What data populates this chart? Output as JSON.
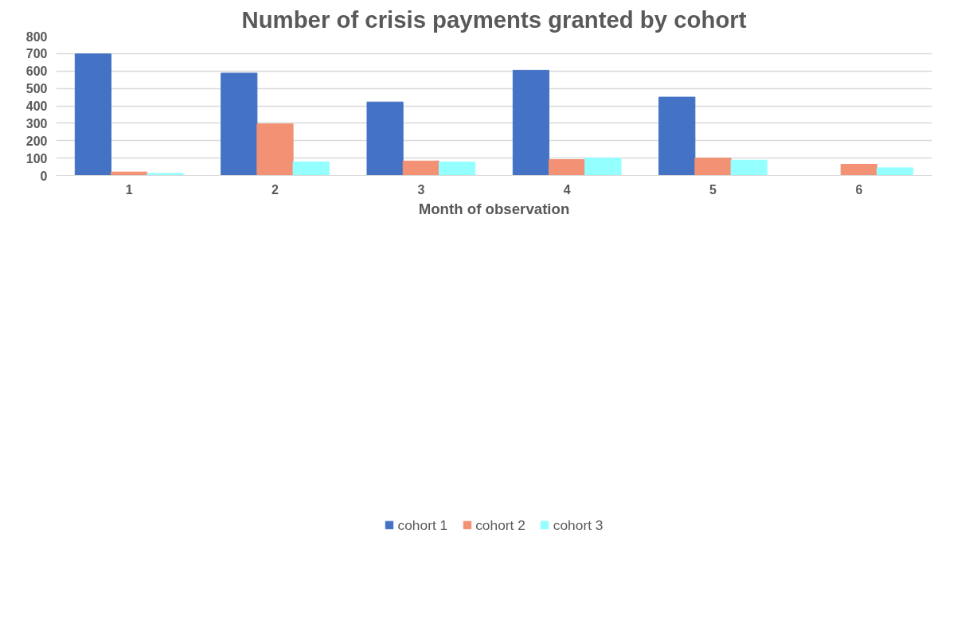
{
  "chart_data": {
    "type": "bar",
    "title": "Number of crisis payments granted by cohort",
    "xlabel": "Month of observation",
    "categories": [
      "1",
      "2",
      "3",
      "4",
      "5",
      "6"
    ],
    "series": [
      {
        "name": "cohort 1",
        "color": "#4472c4",
        "values": [
          698,
          588,
          422,
          604,
          450,
          null
        ]
      },
      {
        "name": "cohort 2",
        "color": "#f29173",
        "values": [
          20,
          296,
          83,
          91,
          99,
          64
        ]
      },
      {
        "name": "cohort 3",
        "color": "#94ffff",
        "values": [
          12,
          78,
          77,
          100,
          88,
          44
        ]
      }
    ],
    "ylim": [
      0,
      800
    ],
    "yticks": [
      0,
      100,
      200,
      300,
      400,
      500,
      600,
      700,
      800
    ],
    "grid": "y",
    "legend": "bottom"
  }
}
